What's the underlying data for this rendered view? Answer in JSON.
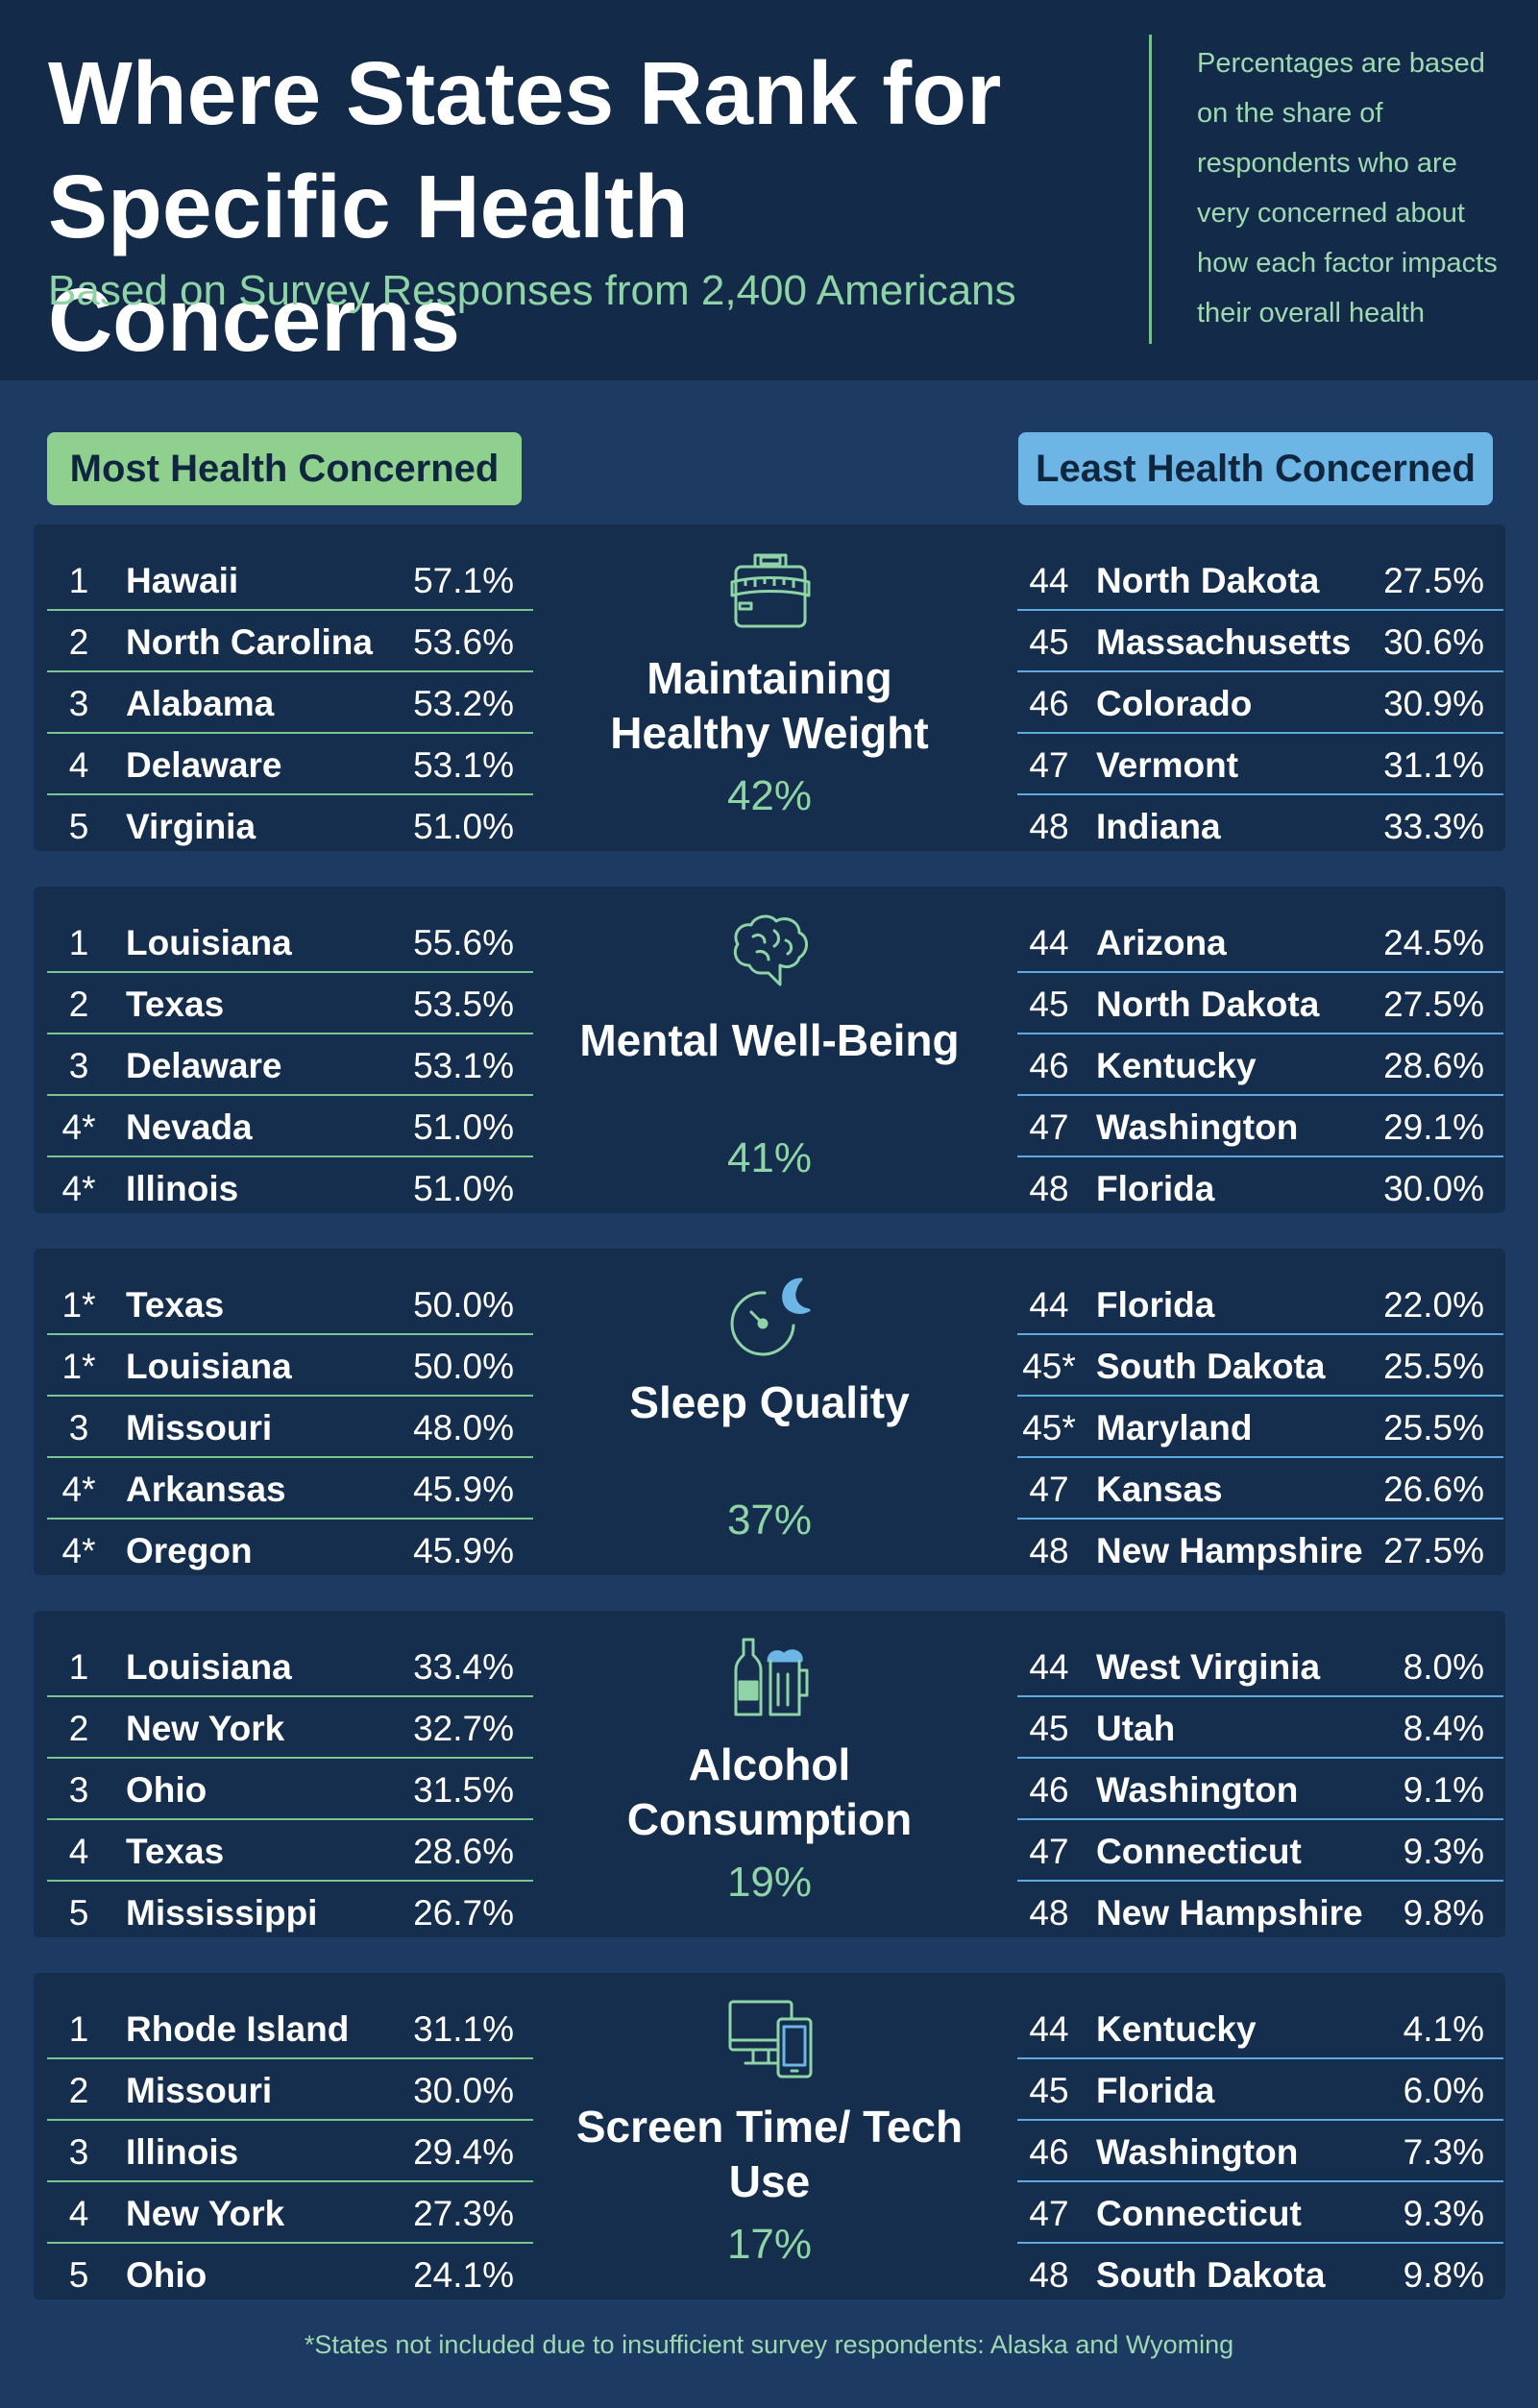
{
  "header": {
    "title": "Where States Rank for Specific Health Concerns",
    "subtitle": "Based on Survey Responses from 2,400 Americans",
    "note": "Percentages are based on the share of respondents who are very concerned about how each factor impacts their overall health"
  },
  "badges": {
    "most": "Most Health Concerned",
    "least": "Least Health Concerned"
  },
  "colors": {
    "background": "#1d3a63",
    "header": "#132b48",
    "panel": "#152e4d",
    "green_accent": "#8fd08e",
    "blue_accent": "#6db5e5",
    "teal_text": "#8fd4a7"
  },
  "categories": [
    {
      "name": "Maintaining Healthy Weight",
      "icon": "scale-measuring-tape-icon",
      "share": "42%",
      "most": [
        {
          "rank": "1",
          "state": "Hawaii",
          "pct": "57.1%"
        },
        {
          "rank": "2",
          "state": "North Carolina",
          "pct": "53.6%"
        },
        {
          "rank": "3",
          "state": "Alabama",
          "pct": "53.2%"
        },
        {
          "rank": "4",
          "state": "Delaware",
          "pct": "53.1%"
        },
        {
          "rank": "5",
          "state": "Virginia",
          "pct": "51.0%"
        }
      ],
      "least": [
        {
          "rank": "44",
          "state": "North Dakota",
          "pct": "27.5%"
        },
        {
          "rank": "45",
          "state": "Massachusetts",
          "pct": "30.6%"
        },
        {
          "rank": "46",
          "state": "Colorado",
          "pct": "30.9%"
        },
        {
          "rank": "47",
          "state": "Vermont",
          "pct": "31.1%"
        },
        {
          "rank": "48",
          "state": "Indiana",
          "pct": "33.3%"
        }
      ]
    },
    {
      "name": "Mental Well-Being",
      "icon": "brain-icon",
      "share": "41%",
      "most": [
        {
          "rank": "1",
          "state": "Louisiana",
          "pct": "55.6%"
        },
        {
          "rank": "2",
          "state": "Texas",
          "pct": "53.5%"
        },
        {
          "rank": "3",
          "state": "Delaware",
          "pct": "53.1%"
        },
        {
          "rank": "4*",
          "state": "Nevada",
          "pct": "51.0%"
        },
        {
          "rank": "4*",
          "state": "Illinois",
          "pct": "51.0%"
        }
      ],
      "least": [
        {
          "rank": "44",
          "state": "Arizona",
          "pct": "24.5%"
        },
        {
          "rank": "45",
          "state": "North Dakota",
          "pct": "27.5%"
        },
        {
          "rank": "46",
          "state": "Kentucky",
          "pct": "28.6%"
        },
        {
          "rank": "47",
          "state": "Washington",
          "pct": "29.1%"
        },
        {
          "rank": "48",
          "state": "Florida",
          "pct": "30.0%"
        }
      ]
    },
    {
      "name": "Sleep Quality",
      "icon": "clock-moon-icon",
      "share": "37%",
      "most": [
        {
          "rank": "1*",
          "state": "Texas",
          "pct": "50.0%"
        },
        {
          "rank": "1*",
          "state": "Louisiana",
          "pct": "50.0%"
        },
        {
          "rank": "3",
          "state": "Missouri",
          "pct": "48.0%"
        },
        {
          "rank": "4*",
          "state": "Arkansas",
          "pct": "45.9%"
        },
        {
          "rank": "4*",
          "state": "Oregon",
          "pct": "45.9%"
        }
      ],
      "least": [
        {
          "rank": "44",
          "state": "Florida",
          "pct": "22.0%"
        },
        {
          "rank": "45*",
          "state": "South Dakota",
          "pct": "25.5%"
        },
        {
          "rank": "45*",
          "state": "Maryland",
          "pct": "25.5%"
        },
        {
          "rank": "47",
          "state": "Kansas",
          "pct": "26.6%"
        },
        {
          "rank": "48",
          "state": "New Hampshire",
          "pct": "27.5%"
        }
      ]
    },
    {
      "name": "Alcohol Consumption",
      "icon": "bottle-beer-mug-icon",
      "share": "19%",
      "most": [
        {
          "rank": "1",
          "state": "Louisiana",
          "pct": "33.4%"
        },
        {
          "rank": "2",
          "state": "New York",
          "pct": "32.7%"
        },
        {
          "rank": "3",
          "state": "Ohio",
          "pct": "31.5%"
        },
        {
          "rank": "4",
          "state": "Texas",
          "pct": "28.6%"
        },
        {
          "rank": "5",
          "state": "Mississippi",
          "pct": "26.7%"
        }
      ],
      "least": [
        {
          "rank": "44",
          "state": "West Virginia",
          "pct": "8.0%"
        },
        {
          "rank": "45",
          "state": "Utah",
          "pct": "8.4%"
        },
        {
          "rank": "46",
          "state": "Washington",
          "pct": "9.1%"
        },
        {
          "rank": "47",
          "state": "Connecticut",
          "pct": "9.3%"
        },
        {
          "rank": "48",
          "state": "New Hampshire",
          "pct": "9.8%"
        }
      ]
    },
    {
      "name": "Screen Time/ Tech Use",
      "icon": "monitor-phone-icon",
      "share": "17%",
      "most": [
        {
          "rank": "1",
          "state": "Rhode Island",
          "pct": "31.1%"
        },
        {
          "rank": "2",
          "state": "Missouri",
          "pct": "30.0%"
        },
        {
          "rank": "3",
          "state": "Illinois",
          "pct": "29.4%"
        },
        {
          "rank": "4",
          "state": "New York",
          "pct": "27.3%"
        },
        {
          "rank": "5",
          "state": "Ohio",
          "pct": "24.1%"
        }
      ],
      "least": [
        {
          "rank": "44",
          "state": "Kentucky",
          "pct": "4.1%"
        },
        {
          "rank": "45",
          "state": "Florida",
          "pct": "6.0%"
        },
        {
          "rank": "46",
          "state": "Washington",
          "pct": "7.3%"
        },
        {
          "rank": "47",
          "state": "Connecticut",
          "pct": "9.3%"
        },
        {
          "rank": "48",
          "state": "South Dakota",
          "pct": "9.8%"
        }
      ]
    }
  ],
  "footnote": "*States not included due to insufficient survey respondents: Alaska and Wyoming"
}
